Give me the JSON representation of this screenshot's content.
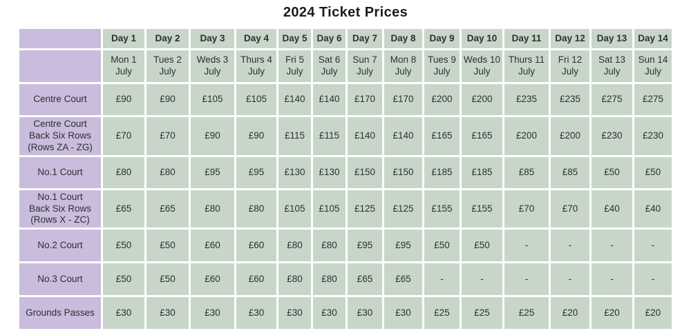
{
  "title": "2024 Ticket Prices",
  "colors": {
    "label_purple": "#c9bcdc",
    "cell_green": "#c7d6c9",
    "text": "#2e2e33",
    "background": "#ffffff"
  },
  "chart_data": {
    "type": "table",
    "title": "2024 Ticket Prices",
    "currency": "GBP",
    "day_headers": [
      "Day 1",
      "Day 2",
      "Day 3",
      "Day 4",
      "Day 5",
      "Day 6",
      "Day 7",
      "Day 8",
      "Day 9",
      "Day 10",
      "Day 11",
      "Day 12",
      "Day 13",
      "Day 14"
    ],
    "date_headers": [
      "Mon 1\nJuly",
      "Tues 2\nJuly",
      "Weds 3\nJuly",
      "Thurs 4\nJuly",
      "Fri 5\nJuly",
      "Sat 6\nJuly",
      "Sun 7\nJuly",
      "Mon 8\nJuly",
      "Tues 9\nJuly",
      "Weds 10\nJuly",
      "Thurs 11\nJuly",
      "Fri 12\nJuly",
      "Sat 13\nJuly",
      "Sun 14\nJuly"
    ],
    "rows": [
      {
        "label": "Centre Court",
        "values": [
          "£90",
          "£90",
          "£105",
          "£105",
          "£140",
          "£140",
          "£170",
          "£170",
          "£200",
          "£200",
          "£235",
          "£235",
          "£275",
          "£275"
        ]
      },
      {
        "label": "Centre Court\nBack Six Rows\n(Rows ZA - ZG)",
        "values": [
          "£70",
          "£70",
          "£90",
          "£90",
          "£115",
          "£115",
          "£140",
          "£140",
          "£165",
          "£165",
          "£200",
          "£200",
          "£230",
          "£230"
        ]
      },
      {
        "label": "No.1 Court",
        "values": [
          "£80",
          "£80",
          "£95",
          "£95",
          "£130",
          "£130",
          "£150",
          "£150",
          "£185",
          "£185",
          "£85",
          "£85",
          "£50",
          "£50"
        ]
      },
      {
        "label": "No.1 Court\nBack Six Rows\n(Rows X - ZC)",
        "values": [
          "£65",
          "£65",
          "£80",
          "£80",
          "£105",
          "£105",
          "£125",
          "£125",
          "£155",
          "£155",
          "£70",
          "£70",
          "£40",
          "£40"
        ]
      },
      {
        "label": "No.2 Court",
        "values": [
          "£50",
          "£50",
          "£60",
          "£60",
          "£80",
          "£80",
          "£95",
          "£95",
          "£50",
          "£50",
          "-",
          "-",
          "-",
          "-"
        ]
      },
      {
        "label": "No.3 Court",
        "values": [
          "£50",
          "£50",
          "£60",
          "£60",
          "£80",
          "£80",
          "£65",
          "£65",
          "-",
          "-",
          "-",
          "-",
          "-",
          "-"
        ]
      },
      {
        "label": "Grounds Passes",
        "values": [
          "£30",
          "£30",
          "£30",
          "£30",
          "£30",
          "£30",
          "£30",
          "£30",
          "£25",
          "£25",
          "£25",
          "£20",
          "£20",
          "£20"
        ]
      }
    ]
  }
}
